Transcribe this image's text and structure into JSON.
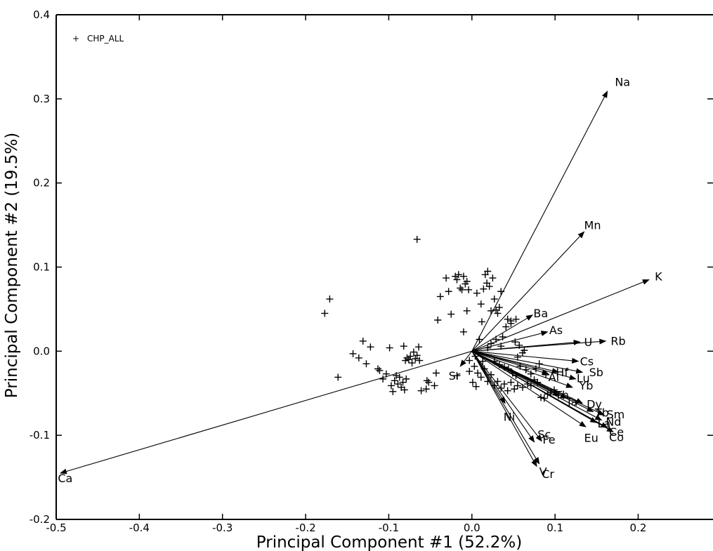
{
  "chart_data": {
    "type": "scatter",
    "title": "",
    "xlabel": "Principal Component #1 (52.2%)",
    "ylabel": "Principal Component #2 (19.5%)",
    "xlim": [
      -0.5,
      0.29
    ],
    "ylim": [
      -0.2,
      0.4
    ],
    "x_ticks": [
      {
        "value": -0.5,
        "label": "-0.5"
      },
      {
        "value": -0.4,
        "label": "-0.4"
      },
      {
        "value": -0.3,
        "label": "-0.3"
      },
      {
        "value": -0.2,
        "label": "-0.2"
      },
      {
        "value": -0.1,
        "label": "-0.1"
      },
      {
        "value": 0.0,
        "label": "0.0"
      },
      {
        "value": 0.1,
        "label": "0.1"
      },
      {
        "value": 0.2,
        "label": "0.2"
      }
    ],
    "y_ticks": [
      {
        "value": -0.2,
        "label": "-0.2"
      },
      {
        "value": -0.1,
        "label": "-0.1"
      },
      {
        "value": 0.0,
        "label": "0.0"
      },
      {
        "value": 0.1,
        "label": "0.1"
      },
      {
        "value": 0.2,
        "label": "0.2"
      },
      {
        "value": 0.3,
        "label": "0.3"
      },
      {
        "value": 0.4,
        "label": "0.4"
      }
    ],
    "legend": {
      "position": "top-left",
      "marker": "+",
      "label": "CHP_ALL"
    },
    "series": [
      {
        "name": "CHP_ALL",
        "marker": "+",
        "points": [
          [
            -0.066,
            0.133
          ],
          [
            -0.177,
            0.045
          ],
          [
            -0.171,
            0.062
          ],
          [
            -0.161,
            -0.031
          ],
          [
            -0.143,
            -0.003
          ],
          [
            -0.136,
            -0.008
          ],
          [
            -0.131,
            0.012
          ],
          [
            -0.127,
            -0.015
          ],
          [
            -0.122,
            0.005
          ],
          [
            -0.113,
            -0.021
          ],
          [
            -0.111,
            -0.023
          ],
          [
            -0.107,
            -0.033
          ],
          [
            -0.103,
            -0.027
          ],
          [
            -0.099,
            0.004
          ],
          [
            -0.097,
            -0.041
          ],
          [
            -0.095,
            -0.048
          ],
          [
            -0.093,
            -0.035
          ],
          [
            -0.091,
            -0.029
          ],
          [
            -0.089,
            -0.039
          ],
          [
            -0.087,
            -0.031
          ],
          [
            -0.085,
            -0.043
          ],
          [
            -0.083,
            -0.037
          ],
          [
            -0.081,
            -0.046
          ],
          [
            -0.079,
            -0.033
          ],
          [
            -0.082,
            0.006
          ],
          [
            -0.08,
            -0.011
          ],
          [
            -0.078,
            -0.008
          ],
          [
            -0.076,
            -0.01
          ],
          [
            -0.074,
            -0.006
          ],
          [
            -0.072,
            -0.014
          ],
          [
            -0.07,
            -0.001
          ],
          [
            -0.068,
            -0.009
          ],
          [
            -0.066,
            -0.005
          ],
          [
            -0.064,
            0.005
          ],
          [
            -0.063,
            -0.011
          ],
          [
            -0.061,
            -0.047
          ],
          [
            -0.055,
            -0.045
          ],
          [
            -0.054,
            -0.035
          ],
          [
            -0.052,
            -0.037
          ],
          [
            -0.045,
            -0.041
          ],
          [
            -0.043,
            -0.026
          ],
          [
            -0.041,
            0.037
          ],
          [
            -0.038,
            0.065
          ],
          [
            -0.031,
            0.087
          ],
          [
            -0.028,
            0.071
          ],
          [
            -0.025,
            0.044
          ],
          [
            -0.02,
            0.089
          ],
          [
            -0.018,
            0.085
          ],
          [
            -0.016,
            0.091
          ],
          [
            -0.014,
            0.075
          ],
          [
            -0.012,
            0.073
          ],
          [
            -0.01,
            0.089
          ],
          [
            -0.008,
            0.08
          ],
          [
            -0.006,
            0.083
          ],
          [
            -0.004,
            0.073
          ],
          [
            -0.01,
            0.023
          ],
          [
            -0.006,
            0.048
          ],
          [
            0.006,
            0.069
          ],
          [
            0.011,
            0.056
          ],
          [
            0.014,
            0.074
          ],
          [
            0.016,
            0.091
          ],
          [
            0.018,
            0.081
          ],
          [
            0.019,
            0.095
          ],
          [
            0.021,
            0.077
          ],
          [
            0.025,
            0.087
          ],
          [
            0.023,
            0.048
          ],
          [
            0.027,
            0.062
          ],
          [
            0.029,
            0.049
          ],
          [
            0.031,
            0.045
          ],
          [
            0.033,
            0.052
          ],
          [
            0.035,
            0.071
          ],
          [
            0.037,
            0.017
          ],
          [
            0.041,
            0.029
          ],
          [
            0.043,
            0.038
          ],
          [
            0.047,
            0.033
          ],
          [
            0.053,
            0.038
          ],
          [
            0.047,
            0.036
          ],
          [
            0.012,
            0.035
          ],
          [
            0.009,
            0.014
          ],
          [
            0.004,
            -0.006
          ],
          [
            0.003,
            -0.018
          ],
          [
            0.007,
            -0.026
          ],
          [
            0.011,
            -0.031
          ],
          [
            0.015,
            -0.021
          ],
          [
            0.019,
            -0.036
          ],
          [
            0.023,
            -0.028
          ],
          [
            0.027,
            -0.041
          ],
          [
            0.031,
            -0.036
          ],
          [
            0.035,
            -0.044
          ],
          [
            0.039,
            -0.039
          ],
          [
            0.043,
            -0.047
          ],
          [
            0.047,
            -0.037
          ],
          [
            0.051,
            -0.045
          ],
          [
            0.055,
            -0.041
          ],
          [
            0.061,
            -0.043
          ],
          [
            0.067,
            -0.039
          ],
          [
            0.071,
            -0.041
          ],
          [
            0.075,
            -0.034
          ],
          [
            0.079,
            -0.037
          ],
          [
            0.083,
            -0.055
          ],
          [
            0.087,
            -0.056
          ],
          [
            0.091,
            -0.051
          ],
          [
            0.095,
            -0.049
          ],
          [
            0.099,
            -0.046
          ],
          [
            0.052,
            0.011
          ],
          [
            0.057,
            0.007
          ],
          [
            0.061,
            -0.002
          ],
          [
            0.063,
            0.001
          ],
          [
            0.055,
            -0.007
          ],
          [
            0.035,
            0.006
          ],
          [
            0.029,
            0.014
          ],
          [
            0.023,
            0.009
          ],
          [
            0.019,
            0.004
          ],
          [
            0.027,
            -0.012
          ],
          [
            0.033,
            -0.016
          ],
          [
            0.039,
            -0.019
          ],
          [
            0.044,
            -0.021
          ],
          [
            0.049,
            -0.026
          ],
          [
            0.053,
            -0.029
          ],
          [
            0.058,
            -0.018
          ],
          [
            0.065,
            -0.022
          ],
          [
            0.071,
            -0.027
          ],
          [
            0.077,
            -0.021
          ],
          [
            0.089,
            -0.028
          ],
          [
            0.013,
            -0.012
          ],
          [
            -0.003,
            -0.011
          ],
          [
            0.005,
            -0.042
          ],
          [
            0.001,
            -0.037
          ],
          [
            -0.003,
            -0.024
          ],
          [
            -0.018,
            -0.029
          ],
          [
            0.081,
            -0.015
          ]
        ]
      }
    ],
    "loadings": [
      {
        "label": "Na",
        "x": 0.163,
        "y": 0.309,
        "label_x": 0.172,
        "label_y": 0.319
      },
      {
        "label": "Mn",
        "x": 0.135,
        "y": 0.142,
        "label_x": 0.135,
        "label_y": 0.149
      },
      {
        "label": "K",
        "x": 0.213,
        "y": 0.085,
        "label_x": 0.22,
        "label_y": 0.088
      },
      {
        "label": "Ba",
        "x": 0.073,
        "y": 0.043,
        "label_x": 0.074,
        "label_y": 0.044
      },
      {
        "label": "As",
        "x": 0.091,
        "y": 0.023,
        "label_x": 0.093,
        "label_y": 0.024
      },
      {
        "label": "U",
        "x": 0.13,
        "y": 0.011,
        "label_x": 0.135,
        "label_y": 0.01
      },
      {
        "label": "Rb",
        "x": 0.161,
        "y": 0.012,
        "label_x": 0.167,
        "label_y": 0.011
      },
      {
        "label": "Cs",
        "x": 0.128,
        "y": -0.012,
        "label_x": 0.13,
        "label_y": -0.013
      },
      {
        "label": "Sb",
        "x": 0.133,
        "y": -0.025,
        "label_x": 0.141,
        "label_y": -0.026
      },
      {
        "label": "Lu",
        "x": 0.125,
        "y": -0.033,
        "label_x": 0.126,
        "label_y": -0.033
      },
      {
        "label": "Hf",
        "x": 0.104,
        "y": -0.025,
        "label_x": 0.101,
        "label_y": -0.026
      },
      {
        "label": "Al",
        "x": 0.092,
        "y": -0.027,
        "label_x": 0.092,
        "label_y": -0.032
      },
      {
        "label": "Yb",
        "x": 0.121,
        "y": -0.043,
        "label_x": 0.129,
        "label_y": -0.042
      },
      {
        "label": "Th",
        "x": 0.105,
        "y": -0.053,
        "label_x": 0.1,
        "label_y": -0.053
      },
      {
        "label": "Ta",
        "x": 0.114,
        "y": -0.056,
        "label_x": 0.113,
        "label_y": -0.061
      },
      {
        "label": "Dy",
        "x": 0.133,
        "y": -0.062,
        "label_x": 0.138,
        "label_y": -0.064
      },
      {
        "label": "Sm",
        "x": 0.159,
        "y": -0.076,
        "label_x": 0.162,
        "label_y": -0.076
      },
      {
        "label": "Tb",
        "x": 0.146,
        "y": -0.072,
        "label_x": 0.148,
        "label_y": -0.074
      },
      {
        "label": "Nd",
        "x": 0.156,
        "y": -0.082,
        "label_x": 0.161,
        "label_y": -0.085
      },
      {
        "label": "La",
        "x": 0.15,
        "y": -0.085,
        "label_x": 0.151,
        "label_y": -0.087
      },
      {
        "label": "Ce",
        "x": 0.163,
        "y": -0.091,
        "label_x": 0.165,
        "label_y": -0.097
      },
      {
        "label": "Co",
        "x": 0.17,
        "y": -0.096,
        "label_x": 0.165,
        "label_y": -0.103
      },
      {
        "label": "Eu",
        "x": 0.137,
        "y": -0.09,
        "label_x": 0.135,
        "label_y": -0.104
      },
      {
        "label": "Ni",
        "x": 0.04,
        "y": -0.062,
        "label_x": 0.038,
        "label_y": -0.079
      },
      {
        "label": "Sc",
        "x": 0.075,
        "y": -0.108,
        "label_x": 0.079,
        "label_y": -0.1
      },
      {
        "label": "Fe",
        "x": 0.084,
        "y": -0.107,
        "label_x": 0.085,
        "label_y": -0.106
      },
      {
        "label": "Cr",
        "x": 0.081,
        "y": -0.134,
        "label_x": 0.084,
        "label_y": -0.147
      },
      {
        "label": "V",
        "x": 0.078,
        "y": -0.137,
        "label_x": 0.081,
        "label_y": -0.144
      },
      {
        "label": "Sr",
        "x": -0.014,
        "y": -0.018,
        "label_x": -0.028,
        "label_y": -0.03
      },
      {
        "label": "Ca",
        "x": -0.495,
        "y": -0.145,
        "label_x": -0.498,
        "label_y": -0.152
      }
    ]
  }
}
